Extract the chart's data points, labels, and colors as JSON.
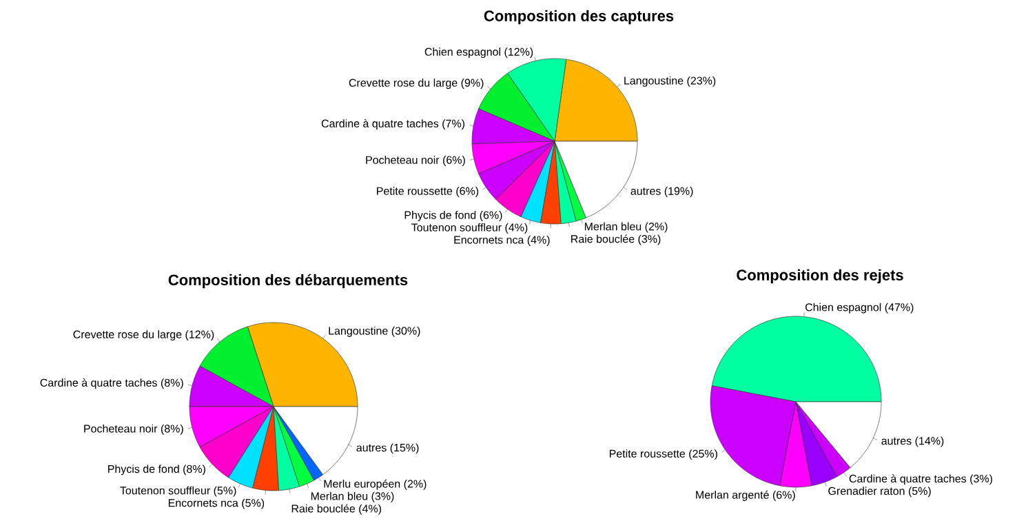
{
  "chart_data": [
    {
      "type": "pie",
      "title": "Composition des captures",
      "categories": [
        "Langoustine (23%)",
        "Chien espagnol (12%)",
        "Crevette rose du large (9%)",
        "Cardine à quatre taches (7%)",
        "Pocheteau noir (6%)",
        "Petite roussette (6%)",
        "Phycis de fond (6%)",
        "Toutenon souffleur (4%)",
        "Encornets nca (4%)",
        "Raie bouclée (3%)",
        "Merlan bleu (2%)",
        "autres (19%)"
      ],
      "values": [
        23,
        12,
        9,
        7,
        6,
        6,
        6,
        4,
        4,
        3,
        2,
        19
      ],
      "colors": [
        "#ffb400",
        "#00ffa0",
        "#00f030",
        "#cc00ff",
        "#ff00ff",
        "#cc00ff",
        "#ff00cc",
        "#00e0ff",
        "#ff4000",
        "#00ffa0",
        "#00ff40",
        "#ffffff"
      ]
    },
    {
      "type": "pie",
      "title": "Composition des débarquements",
      "categories": [
        "Langoustine (30%)",
        "Crevette rose du large (12%)",
        "Cardine à quatre taches (8%)",
        "Pocheteau noir (8%)",
        "Phycis de fond (8%)",
        "Toutenon souffleur (5%)",
        "Encornets nca (5%)",
        "Raie bouclée (4%)",
        "Merlan bleu (3%)",
        "Merlu européen (2%)",
        "autres (15%)"
      ],
      "values": [
        30,
        12,
        8,
        8,
        8,
        5,
        5,
        4,
        3,
        2,
        15
      ],
      "colors": [
        "#ffb400",
        "#00f030",
        "#cc00ff",
        "#ff00ff",
        "#ff00cc",
        "#00e0ff",
        "#ff4000",
        "#00ffa0",
        "#00ff40",
        "#0066ff",
        "#ffffff"
      ]
    },
    {
      "type": "pie",
      "title": "Composition des rejets",
      "categories": [
        "Chien espagnol (47%)",
        "Petite roussette (25%)",
        "Merlan argenté (6%)",
        "Grenadier raton (5%)",
        "Cardine à quatre taches (3%)",
        "autres (14%)"
      ],
      "values": [
        47,
        25,
        6,
        5,
        3,
        14
      ],
      "colors": [
        "#00ffa0",
        "#cc00ff",
        "#ff00ff",
        "#9900ff",
        "#cc00ff",
        "#ffffff"
      ]
    }
  ]
}
